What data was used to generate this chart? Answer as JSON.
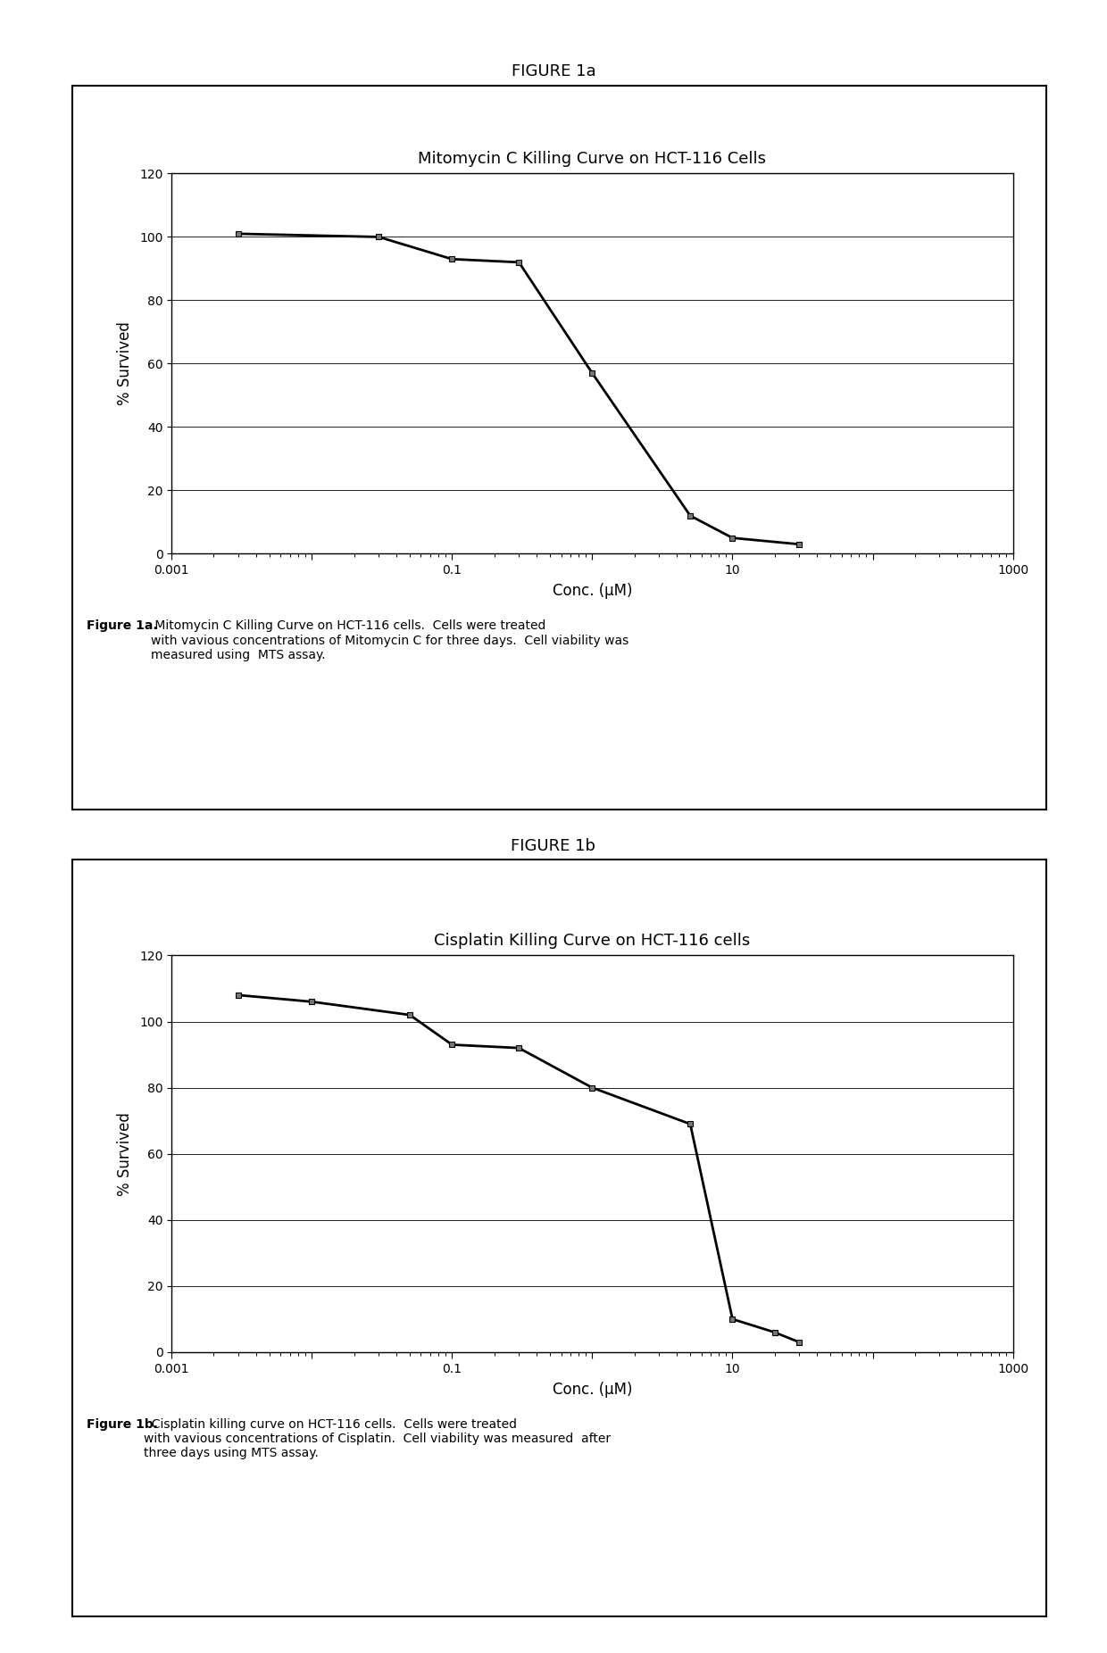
{
  "fig1a": {
    "title": "Mitomycin C Killing Curve on HCT-116 Cells",
    "xlabel": "Conc. (μM)",
    "ylabel": "% Survived",
    "x": [
      0.003,
      0.03,
      0.1,
      0.3,
      1.0,
      5.0,
      10.0,
      30.0
    ],
    "y": [
      101,
      100,
      93,
      92,
      57,
      12,
      5,
      3
    ],
    "ylim": [
      0,
      120
    ],
    "yticks": [
      0,
      20,
      40,
      60,
      80,
      100,
      120
    ],
    "caption_bold": "Figure 1a.",
    "caption_normal": " Mitomycin C Killing Curve on HCT-116 cells.  Cells were treated\nwith vavious concentrations of Mitomycin C for three days.  Cell viability was\nmeasured using  MTS assay."
  },
  "fig1b": {
    "title": "Cisplatin Killing Curve on HCT-116 cells",
    "xlabel": "Conc. (μM)",
    "ylabel": "% Survived",
    "x": [
      0.003,
      0.01,
      0.05,
      0.1,
      0.3,
      1.0,
      5.0,
      10.0,
      20.0,
      30.0
    ],
    "y": [
      108,
      106,
      102,
      93,
      92,
      80,
      69,
      10,
      6,
      3
    ],
    "ylim": [
      0,
      120
    ],
    "yticks": [
      0,
      20,
      40,
      60,
      80,
      100,
      120
    ],
    "caption_bold": "Figure 1b.",
    "caption_normal": "  Cisplatin killing curve on HCT-116 cells.  Cells were treated\nwith vavious concentrations of Cisplatin.  Cell viability was measured  after\nthree days using MTS assay."
  },
  "figure_label_1a": "FIGURE 1a",
  "figure_label_1b": "FIGURE 1b"
}
